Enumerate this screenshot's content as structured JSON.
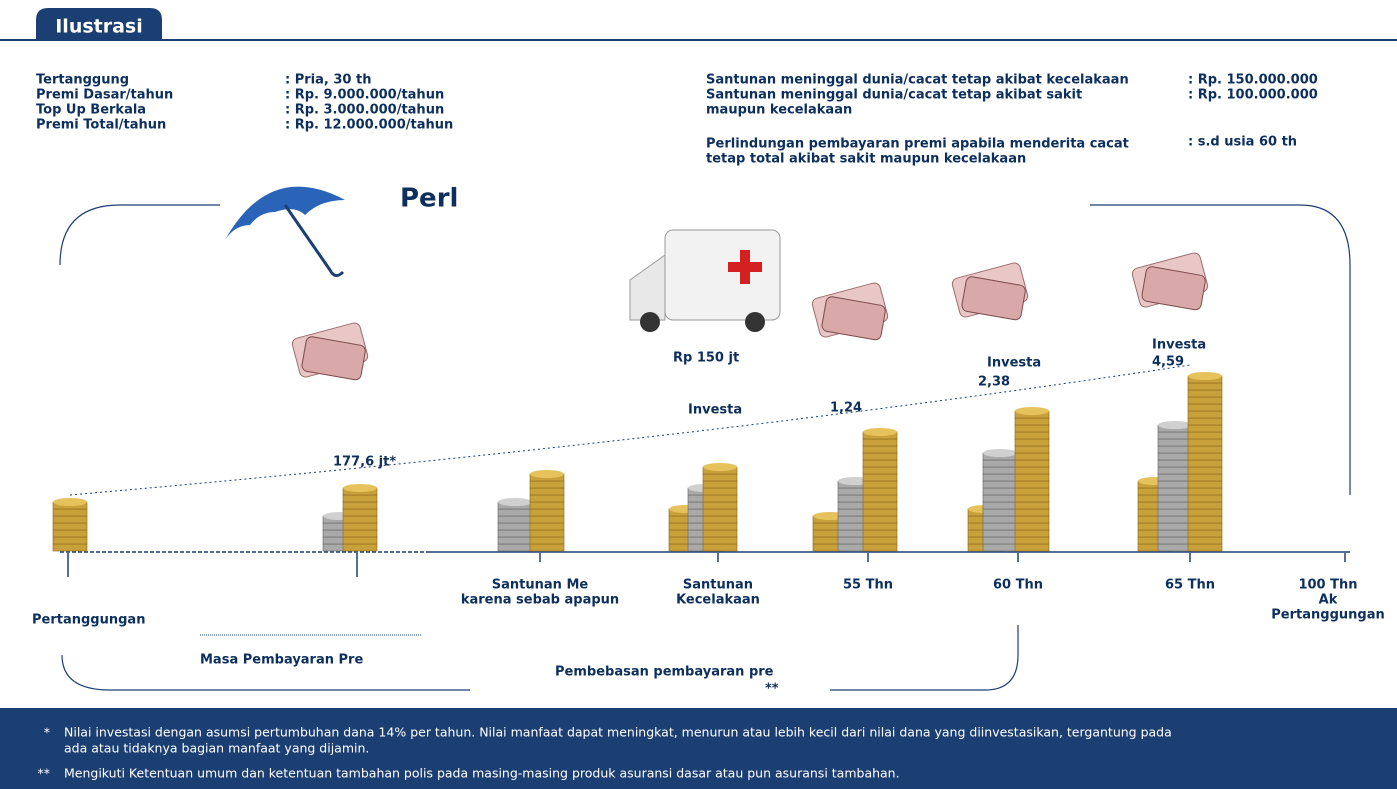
{
  "header": {
    "title": "Ilustrasi"
  },
  "info_left": [
    {
      "label": "Tertanggung",
      "value": ": Pria, 30 th"
    },
    {
      "label": "Premi Dasar/tahun",
      "value": ": Rp.   9.000.000/tahun"
    },
    {
      "label": "Top Up Berkala",
      "value": ": Rp.   3.000.000/tahun"
    },
    {
      "label": "Premi Total/tahun",
      "value": ": Rp. 12.000.000/tahun"
    }
  ],
  "info_right": [
    {
      "label": [
        "Santunan meninggal dunia/cacat tetap akibat kecelakaan"
      ],
      "value": ": Rp. 150.000.000"
    },
    {
      "label": [
        "Santunan meninggal dunia/cacat tetap akibat sakit",
        "maupun kecelakaan"
      ],
      "value": ": Rp. 100.000.000"
    },
    {
      "label": [
        "Perlindungan pembayaran premi apabila menderita cacat",
        "tetap total akibat sakit maupun kecelakaan"
      ],
      "value": ": s.d usia 60 th"
    }
  ],
  "diagram": {
    "heading": "Perl",
    "values": [
      "177,6 jt*",
      "Rp 150 jt",
      "1,24",
      "2,38",
      "4,59"
    ],
    "investa": [
      "Investa",
      "Investa",
      "Investa"
    ],
    "start_label": "Pertanggungan",
    "period_label": "Masa Pembayaran Pre",
    "waiver_label": "Pembebasan pembayaran pre",
    "waiver_mark": "**",
    "milestones": [
      [
        "Santunan Me",
        "karena sebab apapun"
      ],
      [
        "Santunan",
        "Kecelakaan"
      ],
      [
        "55 Thn"
      ],
      [
        "60 Thn"
      ],
      [
        "65 Thn"
      ],
      [
        "100 Thn",
        "Ak",
        "Pertanggungan"
      ]
    ]
  },
  "notes": [
    {
      "marker": "*",
      "text": [
        "Nilai investasi dengan asumsi pertumbuhan dana 14% per tahun. Nilai manfaat dapat meningkat, menurun atau lebih kecil dari nilai dana yang diinvestasikan, tergantung pada",
        "ada atau tidaknya bagian manfaat yang dijamin."
      ]
    },
    {
      "marker": "**",
      "text": [
        "Mengikuti Ketentuan umum dan ketentuan tambahan polis pada masing-masing produk asuransi dasar atau pun asuransi tambahan."
      ]
    }
  ]
}
